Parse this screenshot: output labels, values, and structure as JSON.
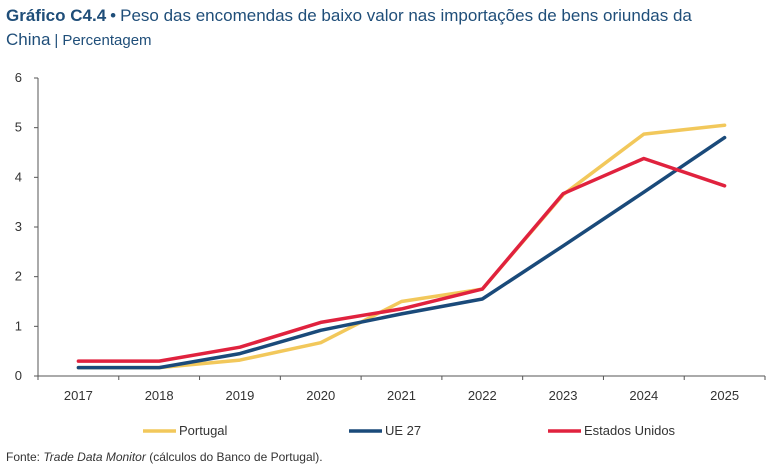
{
  "header": {
    "figure_number": "Gráfico C4.4",
    "separator": "•",
    "title": "Peso das encomendas de baixo valor nas importações de bens oriundas da China",
    "bar": "|",
    "unit": "Percentagem"
  },
  "chart_data": {
    "type": "line",
    "categories": [
      "2017",
      "2018",
      "2019",
      "2020",
      "2021",
      "2022",
      "2023",
      "2024",
      "2025"
    ],
    "y_ticks": [
      "0",
      "1",
      "2",
      "3",
      "4",
      "5",
      "6"
    ],
    "ylim": [
      0,
      6
    ],
    "grid": false,
    "legend_position": "bottom",
    "series": [
      {
        "name": "Portugal",
        "color": "#f2c85b",
        "values": [
          0.17,
          0.17,
          0.32,
          0.67,
          1.5,
          1.75,
          3.65,
          4.87,
          5.05
        ]
      },
      {
        "name": "UE 27",
        "color": "#1a4a7a",
        "values": [
          0.17,
          0.17,
          0.45,
          0.92,
          1.25,
          1.55,
          2.62,
          3.7,
          4.8
        ]
      },
      {
        "name": "Estados Unidos",
        "color": "#e0223e",
        "values": [
          0.3,
          0.3,
          0.58,
          1.08,
          1.35,
          1.75,
          3.67,
          4.38,
          3.83
        ]
      }
    ]
  },
  "footer": {
    "source_prefix": "Fonte: ",
    "source_italic": "Trade Data Monitor",
    "source_suffix": " (cálculos do Banco de Portugal)."
  }
}
